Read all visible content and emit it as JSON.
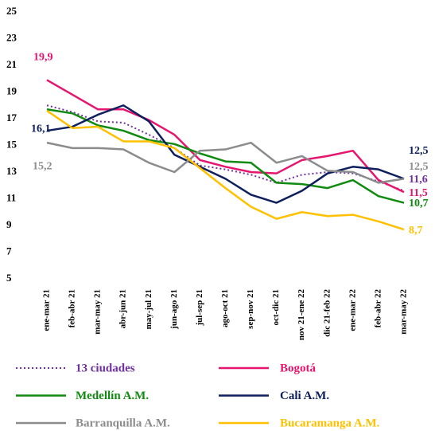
{
  "chart_data": {
    "type": "line",
    "categories": [
      "ene-mar 21",
      "feb-abr 21",
      "mar-may 21",
      "abr-jun 21",
      "may-jul 21",
      "jun-ago 21",
      "jul-sep 21",
      "ago-oct 21",
      "sep-nov 21",
      "oct-dic 21",
      "nov 21-ene 22",
      "dic 21-feb 22",
      "ene-mar 22",
      "feb-abr 22",
      "mar-may 22"
    ],
    "ylim": [
      5,
      25
    ],
    "yticks": [
      5,
      7,
      9,
      11,
      13,
      15,
      17,
      19,
      21,
      23,
      25
    ],
    "grid": false,
    "series": [
      {
        "name": "13 ciudades",
        "color": "#7030a0",
        "style": "dotted",
        "values": [
          18.0,
          17.5,
          16.8,
          16.7,
          15.8,
          14.8,
          13.5,
          13.2,
          12.8,
          12.2,
          12.8,
          13.0,
          12.9,
          12.3,
          11.6
        ],
        "value_labels": [
          null,
          null,
          null,
          null,
          null,
          null,
          null,
          null,
          null,
          null,
          null,
          null,
          null,
          null,
          "11,6"
        ]
      },
      {
        "name": "Bogotá",
        "color": "#e6156f",
        "style": "solid",
        "values": [
          19.9,
          18.8,
          17.7,
          17.7,
          16.9,
          15.8,
          13.9,
          13.4,
          13.0,
          12.9,
          13.9,
          14.2,
          14.6,
          12.4,
          11.5
        ],
        "value_labels": [
          "19,9",
          null,
          null,
          null,
          null,
          null,
          null,
          null,
          null,
          null,
          null,
          null,
          null,
          null,
          "11,5"
        ]
      },
      {
        "name": "Medellín A.M.",
        "color": "#108a10",
        "style": "solid",
        "values": [
          17.7,
          17.4,
          16.5,
          16.1,
          15.4,
          15.1,
          14.4,
          13.8,
          13.7,
          12.2,
          12.1,
          11.8,
          12.4,
          11.2,
          10.7
        ],
        "value_labels": [
          null,
          null,
          null,
          null,
          null,
          null,
          null,
          null,
          null,
          null,
          null,
          null,
          null,
          null,
          "10,7"
        ]
      },
      {
        "name": "Cali A.M.",
        "color": "#0d1f5c",
        "style": "solid",
        "values": [
          16.1,
          16.4,
          17.3,
          18.0,
          16.8,
          14.3,
          13.4,
          12.5,
          11.3,
          10.7,
          11.6,
          12.9,
          13.4,
          13.2,
          12.5
        ],
        "value_labels": [
          "16,1",
          null,
          null,
          null,
          null,
          null,
          null,
          null,
          null,
          null,
          null,
          null,
          null,
          null,
          "12,5"
        ]
      },
      {
        "name": "Barranquilla A.M.",
        "color": "#8c8c8c",
        "style": "solid",
        "values": [
          15.2,
          14.8,
          14.8,
          14.7,
          13.7,
          13.0,
          14.6,
          14.7,
          15.2,
          13.7,
          14.2,
          13.1,
          13.0,
          12.2,
          12.5
        ],
        "value_labels": [
          "15,2",
          null,
          null,
          null,
          null,
          null,
          null,
          null,
          null,
          null,
          null,
          null,
          null,
          null,
          "12,5"
        ]
      },
      {
        "name": "Bucaramanga A.M.",
        "color": "#ffc000",
        "style": "solid",
        "values": [
          17.6,
          16.3,
          16.4,
          15.3,
          15.3,
          14.8,
          13.3,
          11.8,
          10.4,
          9.5,
          10.0,
          9.7,
          9.8,
          9.3,
          8.7
        ],
        "value_labels": [
          null,
          null,
          null,
          null,
          null,
          null,
          null,
          null,
          null,
          null,
          null,
          null,
          null,
          null,
          "8,7"
        ]
      }
    ]
  }
}
